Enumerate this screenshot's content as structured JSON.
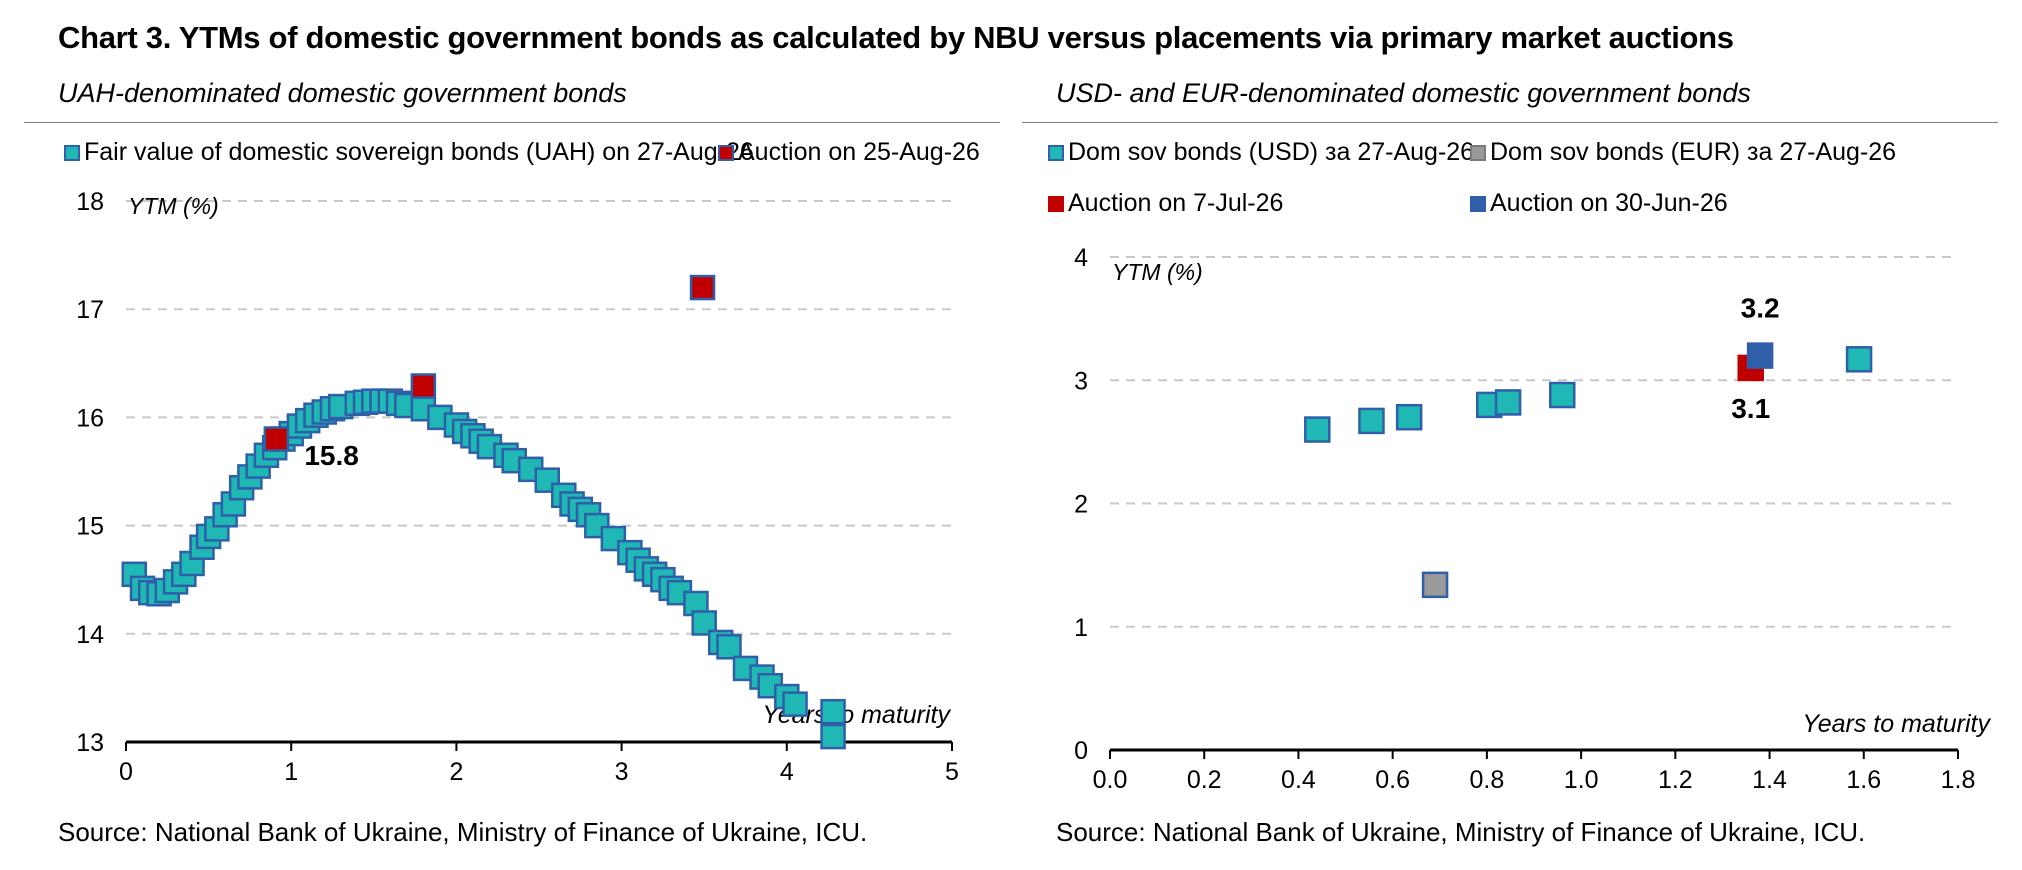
{
  "title": "Chart 3. YTMs of domestic government bonds as calculated by NBU versus placements via primary market auctions",
  "source_left": "Source: National Bank of Ukraine, Ministry of Finance of Ukraine, ICU.",
  "source_right": "Source: National Bank of Ukraine, Ministry of Finance of Ukraine, ICU.",
  "colors": {
    "teal": "#1fb8b4",
    "red": "#c00000",
    "grey": "#9a9a9a",
    "blue": "#2e5fa8",
    "edge": "#2e5fa8",
    "grid": "#c8c8c8"
  },
  "chart_data": [
    {
      "type": "scatter",
      "title": "UAH-denominated domestic government bonds",
      "xlabel": "Years to maturity",
      "ylabel": "YTM (%)",
      "xlim": [
        0,
        5
      ],
      "ylim": [
        13,
        18
      ],
      "x_ticks": [
        0,
        1,
        2,
        3,
        4,
        5
      ],
      "y_ticks": [
        13,
        14,
        15,
        16,
        17,
        18
      ],
      "x_tick_labels": [
        "0",
        "1",
        "2",
        "3",
        "4",
        "5"
      ],
      "y_tick_labels": [
        "13",
        "14",
        "15",
        "16",
        "17",
        "18"
      ],
      "grid": true,
      "legend": [
        "Fair value of domestic sovereign bonds (UAH) on 27-Aug-26",
        "Auction on 25-Aug-26"
      ],
      "series": [
        {
          "name": "Fair value of domestic sovereign bonds (UAH) on 27-Aug-26",
          "color": "teal",
          "points": [
            [
              0.05,
              14.55
            ],
            [
              0.1,
              14.42
            ],
            [
              0.15,
              14.38
            ],
            [
              0.2,
              14.37
            ],
            [
              0.25,
              14.4
            ],
            [
              0.3,
              14.48
            ],
            [
              0.35,
              14.55
            ],
            [
              0.4,
              14.65
            ],
            [
              0.46,
              14.8
            ],
            [
              0.5,
              14.9
            ],
            [
              0.55,
              14.97
            ],
            [
              0.6,
              15.1
            ],
            [
              0.65,
              15.2
            ],
            [
              0.7,
              15.35
            ],
            [
              0.75,
              15.45
            ],
            [
              0.8,
              15.55
            ],
            [
              0.85,
              15.65
            ],
            [
              0.9,
              15.72
            ],
            [
              0.95,
              15.8
            ],
            [
              1.0,
              15.85
            ],
            [
              1.05,
              15.92
            ],
            [
              1.1,
              15.97
            ],
            [
              1.15,
              16.02
            ],
            [
              1.2,
              16.05
            ],
            [
              1.25,
              16.08
            ],
            [
              1.3,
              16.1
            ],
            [
              1.4,
              16.13
            ],
            [
              1.45,
              16.14
            ],
            [
              1.5,
              16.15
            ],
            [
              1.55,
              16.15
            ],
            [
              1.6,
              16.15
            ],
            [
              1.65,
              16.13
            ],
            [
              1.7,
              16.11
            ],
            [
              1.8,
              16.08
            ],
            [
              1.9,
              16.0
            ],
            [
              2.0,
              15.93
            ],
            [
              2.05,
              15.87
            ],
            [
              2.1,
              15.83
            ],
            [
              2.15,
              15.78
            ],
            [
              2.2,
              15.73
            ],
            [
              2.3,
              15.65
            ],
            [
              2.35,
              15.6
            ],
            [
              2.45,
              15.52
            ],
            [
              2.55,
              15.42
            ],
            [
              2.65,
              15.28
            ],
            [
              2.7,
              15.2
            ],
            [
              2.75,
              15.15
            ],
            [
              2.8,
              15.1
            ],
            [
              2.85,
              15.0
            ],
            [
              2.95,
              14.88
            ],
            [
              3.05,
              14.75
            ],
            [
              3.1,
              14.68
            ],
            [
              3.15,
              14.6
            ],
            [
              3.2,
              14.55
            ],
            [
              3.25,
              14.5
            ],
            [
              3.3,
              14.42
            ],
            [
              3.35,
              14.38
            ],
            [
              3.45,
              14.28
            ],
            [
              3.5,
              14.1
            ],
            [
              3.6,
              13.92
            ],
            [
              3.65,
              13.88
            ],
            [
              3.75,
              13.68
            ],
            [
              3.85,
              13.6
            ],
            [
              3.9,
              13.52
            ],
            [
              4.0,
              13.42
            ],
            [
              4.05,
              13.35
            ],
            [
              4.28,
              13.28
            ],
            [
              4.28,
              13.05
            ]
          ]
        },
        {
          "name": "Auction on 25-Aug-26",
          "color": "red",
          "points": [
            [
              0.91,
              15.8
            ],
            [
              1.8,
              16.29
            ],
            [
              3.49,
              17.2
            ]
          ]
        }
      ],
      "annotations": [
        {
          "text": "15.8",
          "x": 0.91,
          "y": 15.8
        }
      ]
    },
    {
      "type": "scatter",
      "title": "USD- and EUR-denominated domestic government bonds",
      "xlabel": "Years to maturity",
      "ylabel": "YTM (%)",
      "xlim": [
        0,
        1.8
      ],
      "ylim": [
        0,
        4
      ],
      "x_ticks": [
        0,
        0.2,
        0.4,
        0.6,
        0.8,
        1.0,
        1.2,
        1.4,
        1.6,
        1.8
      ],
      "y_ticks": [
        0,
        1,
        2,
        3,
        4
      ],
      "x_tick_labels": [
        "0.0",
        "0.2",
        "0.4",
        "0.6",
        "0.8",
        "1.0",
        "1.2",
        "1.4",
        "1.6",
        "1.8"
      ],
      "y_tick_labels": [
        "0",
        "1",
        "2",
        "3",
        "4"
      ],
      "grid": true,
      "legend": [
        "Dom sov bonds (USD) за 27-Aug-26",
        "Dom sov bonds (EUR) за 27-Aug-26",
        "Auction on 7-Jul-26",
        "Auction on 30-Jun-26"
      ],
      "series": [
        {
          "name": "Dom sov bonds (USD) за 27-Aug-26",
          "color": "teal",
          "points": [
            [
              0.44,
              2.6
            ],
            [
              0.555,
              2.67
            ],
            [
              0.635,
              2.7
            ],
            [
              0.805,
              2.8
            ],
            [
              0.845,
              2.82
            ],
            [
              0.96,
              2.88
            ],
            [
              1.59,
              3.17
            ]
          ]
        },
        {
          "name": "Dom sov bonds (EUR) за 27-Aug-26",
          "color": "grey",
          "points": [
            [
              0.69,
              1.34
            ]
          ]
        },
        {
          "name": "Auction on 7-Jul-26",
          "color": "red",
          "points": [
            [
              1.36,
              3.1
            ]
          ]
        },
        {
          "name": "Auction on 30-Jun-26",
          "color": "blue",
          "points": [
            [
              1.38,
              3.2
            ]
          ]
        }
      ],
      "annotations": [
        {
          "text": "3.2",
          "x": 1.38,
          "y": 3.2
        },
        {
          "text": "3.1",
          "x": 1.36,
          "y": 3.1
        }
      ]
    }
  ]
}
